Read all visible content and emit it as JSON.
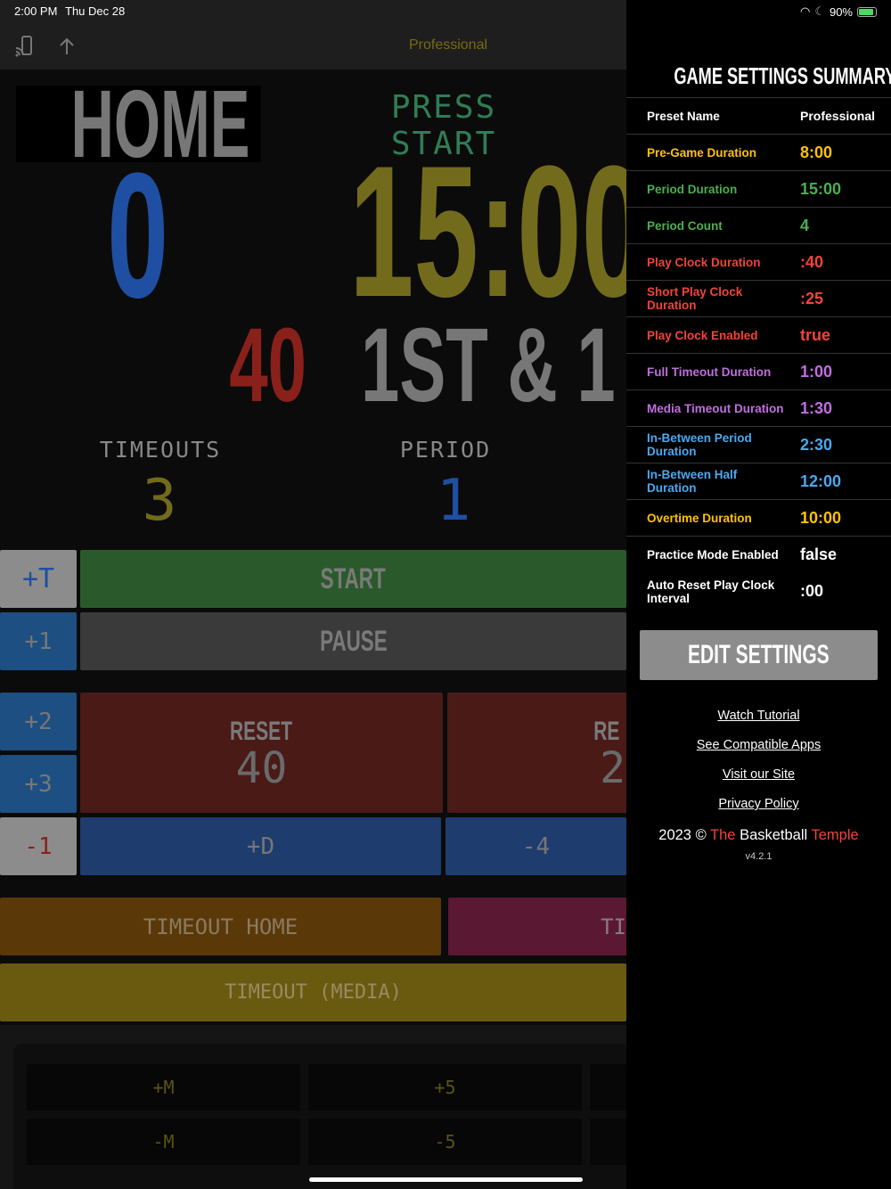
{
  "status_bar": {
    "time": "2:00 PM",
    "date": "Thu Dec 28",
    "battery": "90%"
  },
  "nav": {
    "title": "Professional",
    "cast_icon": "cast-icon",
    "share_icon": "arrow-up-icon"
  },
  "board": {
    "team": "HOME",
    "message": "PRESS START",
    "score": "0",
    "clock": "15:00",
    "play_clock": "40",
    "down": "1ST & 1",
    "timeouts_label": "TIMEOUTS",
    "timeouts": "3",
    "period_label": "PERIOD",
    "period": "1"
  },
  "controls": {
    "plus_t": "+T",
    "start": "START",
    "plus_1": "+1",
    "pause": "PAUSE",
    "plus_2": "+2",
    "plus_3": "+3",
    "reset_label": "RESET",
    "reset_value": "40",
    "reset2_label": "RE",
    "reset2_value": "2",
    "minus_1": "-1",
    "plus_d": "+D",
    "minus_4": "-4",
    "timeout_home": "TIMEOUT HOME",
    "timeout_away": "TI",
    "timeout_media": "TIMEOUT (MEDIA)",
    "plus_m": "+M",
    "plus_5": "+5",
    "minus_m": "-M",
    "minus_5": "-5"
  },
  "summary": {
    "title": "GAME SETTINGS SUMMARY",
    "rows": [
      {
        "label": "Preset Name",
        "value": "Professional",
        "color": "#ffffff"
      },
      {
        "label": "Pre-Game Duration",
        "value": "8:00",
        "color": "#ffc107"
      },
      {
        "label": "Period Duration",
        "value": "15:00",
        "color": "#4caf50"
      },
      {
        "label": "Period Count",
        "value": "4",
        "color": "#4caf50"
      },
      {
        "label": "Play Clock Duration",
        "value": ":40",
        "color": "#f44336"
      },
      {
        "label": "Short Play Clock Duration",
        "value": ":25",
        "color": "#f44336"
      },
      {
        "label": "Play Clock Enabled",
        "value": "true",
        "color": "#f44336"
      },
      {
        "label": "Full Timeout Duration",
        "value": "1:00",
        "color": "#c16ee0"
      },
      {
        "label": "Media Timeout Duration",
        "value": "1:30",
        "color": "#c16ee0"
      },
      {
        "label": "In-Between Period Duration",
        "value": "2:30",
        "color": "#4aa8f0"
      },
      {
        "label": "In-Between Half Duration",
        "value": "12:00",
        "color": "#4aa8f0"
      },
      {
        "label": "Overtime Duration",
        "value": "10:00",
        "color": "#ffc107"
      },
      {
        "label": "Practice Mode Enabled",
        "value": "false",
        "color": "#ffffff"
      },
      {
        "label": "Auto Reset Play Clock Interval",
        "value": ":00",
        "color": "#ffffff"
      }
    ],
    "edit_button": "EDIT SETTINGS",
    "links": [
      "Watch Tutorial",
      "See Compatible Apps",
      "Visit our Site",
      "Privacy Policy"
    ],
    "footer": {
      "year": "2023 ©",
      "the": "The",
      "basketball": "Basketball",
      "temple": "Temple",
      "version": "v4.2.1"
    }
  }
}
